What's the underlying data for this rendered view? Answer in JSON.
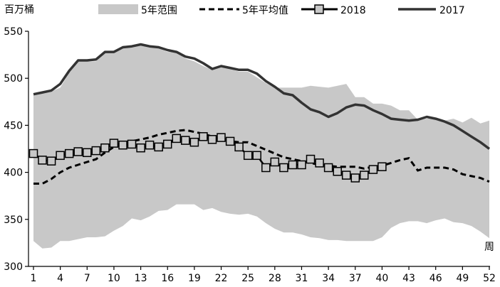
{
  "chart_data": {
    "type": "line",
    "title": "",
    "ylabel": "百万桶",
    "xlabel": "周",
    "xlim": [
      1,
      52
    ],
    "ylim": [
      300,
      550
    ],
    "xticks": [
      1,
      4,
      7,
      10,
      13,
      16,
      19,
      22,
      25,
      28,
      31,
      34,
      37,
      40,
      43,
      46,
      49,
      52
    ],
    "yticks": [
      300,
      350,
      400,
      450,
      500,
      550
    ],
    "legend_position": "top",
    "grid": false,
    "colors": {
      "range": "#c8c8c8",
      "avg": "#000000",
      "s2018": "#000000",
      "s2017": "#333333"
    },
    "range": {
      "name": "5年范围",
      "x": [
        1,
        2,
        3,
        4,
        5,
        6,
        7,
        8,
        9,
        10,
        11,
        12,
        13,
        14,
        15,
        16,
        17,
        18,
        19,
        20,
        21,
        22,
        23,
        24,
        25,
        26,
        27,
        28,
        29,
        30,
        31,
        32,
        33,
        34,
        35,
        36,
        37,
        38,
        39,
        40,
        41,
        42,
        43,
        44,
        45,
        46,
        47,
        48,
        49,
        50,
        51,
        52
      ],
      "low": [
        327,
        319,
        320,
        327,
        327,
        329,
        331,
        331,
        332,
        338,
        343,
        351,
        349,
        353,
        359,
        360,
        366,
        366,
        366,
        360,
        362,
        358,
        356,
        355,
        356,
        353,
        346,
        340,
        336,
        336,
        334,
        331,
        330,
        328,
        328,
        327,
        327,
        327,
        327,
        331,
        341,
        346,
        348,
        348,
        346,
        349,
        351,
        347,
        346,
        343,
        337,
        330
      ],
      "high": [
        482,
        484,
        486,
        490,
        506,
        518,
        518,
        518,
        528,
        528,
        533,
        534,
        535,
        533,
        532,
        528,
        528,
        521,
        518,
        513,
        509,
        512,
        510,
        507,
        507,
        501,
        495,
        490,
        490,
        490,
        490,
        492,
        491,
        490,
        492,
        494,
        480,
        480,
        473,
        473,
        471,
        466,
        466,
        456,
        457,
        457,
        455,
        457,
        453,
        458,
        452,
        455
      ]
    },
    "series": [
      {
        "name": "5年平均值",
        "x": [
          1,
          2,
          3,
          4,
          5,
          6,
          7,
          8,
          9,
          10,
          11,
          12,
          13,
          14,
          15,
          16,
          17,
          18,
          19,
          20,
          21,
          22,
          23,
          24,
          25,
          26,
          27,
          28,
          29,
          30,
          31,
          32,
          33,
          34,
          35,
          36,
          37,
          38,
          39,
          40,
          41,
          42,
          43,
          44,
          45,
          46,
          47,
          48,
          49,
          50,
          51,
          52
        ],
        "values": [
          388,
          388,
          393,
          400,
          405,
          408,
          411,
          414,
          421,
          427,
          430,
          433,
          435,
          437,
          440,
          442,
          444,
          445,
          443,
          441,
          438,
          436,
          433,
          432,
          432,
          428,
          424,
          420,
          416,
          414,
          412,
          410,
          408,
          407,
          406,
          406,
          406,
          404,
          406,
          407,
          410,
          413,
          415,
          402,
          405,
          405,
          405,
          403,
          398,
          396,
          394,
          390
        ]
      },
      {
        "name": "2018",
        "x": [
          1,
          2,
          3,
          4,
          5,
          6,
          7,
          8,
          9,
          10,
          11,
          12,
          13,
          14,
          15,
          16,
          17,
          18,
          19,
          20,
          21,
          22,
          23,
          24,
          25,
          26,
          27,
          28,
          29,
          30,
          31,
          32,
          33,
          34,
          35,
          36,
          37,
          38,
          39,
          40
        ],
        "values": [
          420,
          413,
          412,
          418,
          420,
          422,
          421,
          423,
          426,
          431,
          429,
          430,
          426,
          429,
          427,
          430,
          436,
          434,
          432,
          438,
          435,
          437,
          433,
          427,
          418,
          418,
          405,
          411,
          405,
          408,
          408,
          414,
          410,
          405,
          401,
          397,
          394,
          397,
          403,
          406
        ]
      },
      {
        "name": "2017",
        "x": [
          1,
          2,
          3,
          4,
          5,
          6,
          7,
          8,
          9,
          10,
          11,
          12,
          13,
          14,
          15,
          16,
          17,
          18,
          19,
          20,
          21,
          22,
          23,
          24,
          25,
          26,
          27,
          28,
          29,
          30,
          31,
          32,
          33,
          34,
          35,
          36,
          37,
          38,
          39,
          40,
          41,
          42,
          43,
          44,
          45,
          46,
          47,
          48,
          49,
          50,
          51,
          52
        ],
        "values": [
          483,
          485,
          487,
          494,
          508,
          519,
          519,
          520,
          528,
          528,
          533,
          534,
          536,
          534,
          533,
          530,
          528,
          523,
          521,
          516,
          510,
          513,
          511,
          509,
          509,
          505,
          497,
          491,
          484,
          482,
          474,
          467,
          464,
          459,
          463,
          469,
          472,
          471,
          466,
          462,
          457,
          456,
          455,
          456,
          459,
          457,
          454,
          450,
          444,
          438,
          432,
          425
        ]
      }
    ]
  }
}
